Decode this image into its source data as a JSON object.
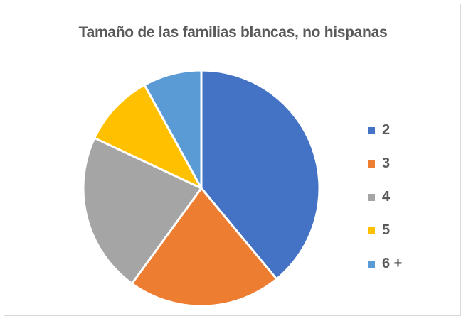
{
  "chart_data": {
    "type": "pie",
    "title": "Tamaño de las familias blancas, no hispanas",
    "categories": [
      "2",
      "3",
      "4",
      "5",
      "6 +"
    ],
    "values": [
      39,
      21,
      22,
      10,
      8
    ],
    "colors": [
      "#4472c4",
      "#ed7d31",
      "#a5a5a5",
      "#ffc000",
      "#5b9bd5"
    ],
    "start_angle_deg": 0,
    "direction": "clockwise",
    "legend_position": "right"
  }
}
